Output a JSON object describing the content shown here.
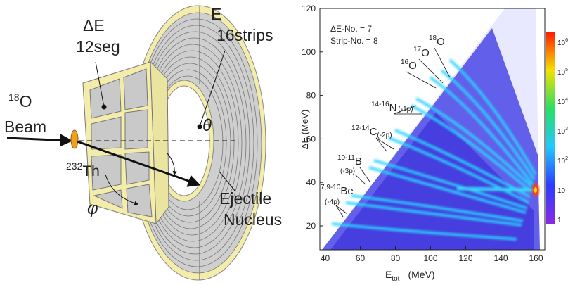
{
  "diagram": {
    "delta_e_label": "ΔE",
    "delta_e_segments": "12seg",
    "e_label": "E",
    "e_strips": "16strips",
    "beam_mass": "18",
    "beam_symbol": "O",
    "beam_label": "Beam",
    "target_mass": "232",
    "target_symbol": "Th",
    "theta": "θ",
    "phi": "φ",
    "ejectile": [
      "Ejectile",
      "Nucleus"
    ]
  },
  "plot": {
    "y_axis_title": "ΔE (MeV)",
    "x_axis_title": {
      "main": "E",
      "sub": "tot",
      "unit": "(MeV)"
    },
    "xlim": [
      37,
      165
    ],
    "xticks": [
      40,
      60,
      80,
      100,
      120,
      140,
      160
    ],
    "ylim": [
      9,
      120
    ],
    "yticks": [
      20,
      40,
      60,
      80,
      100,
      120
    ],
    "info": [
      "ΔE-No. = 7",
      "Strip-No. = 8"
    ],
    "isotopes": [
      {
        "mass": "18",
        "symbol": "O"
      },
      {
        "mass": "17",
        "symbol": "O"
      },
      {
        "mass": "16",
        "symbol": "O"
      },
      {
        "mass": "14-16",
        "symbol": "N",
        "note": "(-1p)"
      },
      {
        "mass": "12-14",
        "symbol": "C",
        "note": "(-2p)"
      },
      {
        "mass": "10-11",
        "symbol": "B",
        "note": "(-3p)"
      },
      {
        "mass": "7,9-10",
        "symbol": "Be",
        "note": "(-4p)"
      }
    ],
    "colorbar": [
      {
        "base": "10",
        "exp": "6"
      },
      {
        "base": "10",
        "exp": "5"
      },
      {
        "base": "10",
        "exp": "4"
      },
      {
        "base": "10",
        "exp": "3"
      },
      {
        "base": "10",
        "exp": "2"
      },
      {
        "base": "10"
      },
      {
        "base": "1"
      }
    ]
  }
}
